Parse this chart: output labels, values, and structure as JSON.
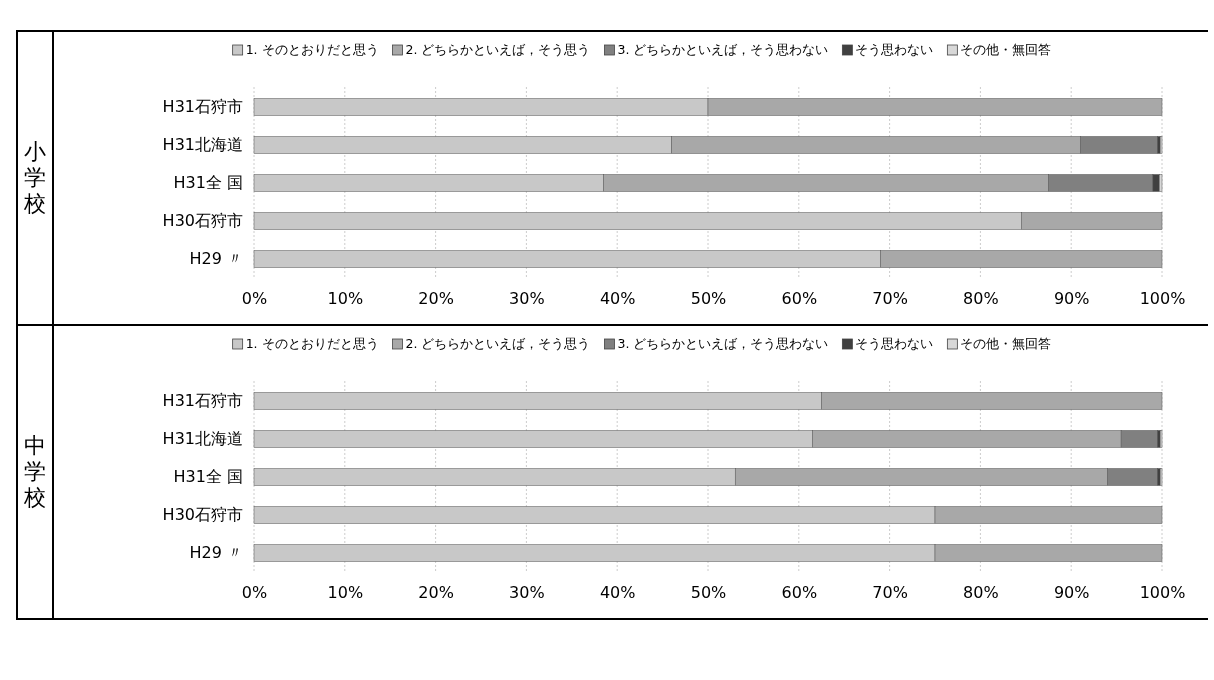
{
  "chart_data": [
    {
      "type": "bar",
      "orientation": "horizontal",
      "stacked": true,
      "ylabel": "小学校",
      "legend": "top",
      "grid": "x",
      "categories": [
        "H31石狩市",
        "H31北海道",
        "H31全 国",
        "H30石狩市",
        "H29 〃"
      ],
      "xlim": [
        0,
        100
      ],
      "xticks": [
        {
          "value": 0,
          "label": "0%"
        },
        {
          "value": 10,
          "label": "10%"
        },
        {
          "value": 20,
          "label": "20%"
        },
        {
          "value": 30,
          "label": "30%"
        },
        {
          "value": 40,
          "label": "40%"
        },
        {
          "value": 50,
          "label": "50%"
        },
        {
          "value": 60,
          "label": "60%"
        },
        {
          "value": 70,
          "label": "70%"
        },
        {
          "value": 80,
          "label": "80%"
        },
        {
          "value": 90,
          "label": "90%"
        },
        {
          "value": 100,
          "label": "100%"
        }
      ],
      "series": [
        {
          "name": "1. そのとおりだと思う",
          "color": "#c8c8c8",
          "values": [
            50,
            46,
            38.5,
            84.5,
            69
          ]
        },
        {
          "name": "2. どちらかといえば，そう思う",
          "color": "#a8a8a8",
          "values": [
            50,
            45,
            49,
            15.5,
            31
          ]
        },
        {
          "name": "3. どちらかといえば，そう思わない",
          "color": "#808080",
          "values": [
            0,
            8.5,
            11.5,
            0,
            0
          ]
        },
        {
          "name": "そう思わない",
          "color": "#404040",
          "values": [
            0,
            0.3,
            0.7,
            0,
            0
          ]
        },
        {
          "name": "その他・無回答",
          "color": "#d8d8d8",
          "values": [
            0,
            0.2,
            0.3,
            0,
            0
          ]
        }
      ]
    },
    {
      "type": "bar",
      "orientation": "horizontal",
      "stacked": true,
      "ylabel": "中学校",
      "legend": "top",
      "grid": "x",
      "categories": [
        "H31石狩市",
        "H31北海道",
        "H31全 国",
        "H30石狩市",
        "H29 〃"
      ],
      "xlim": [
        0,
        100
      ],
      "xticks": [
        {
          "value": 0,
          "label": "0%"
        },
        {
          "value": 10,
          "label": "10%"
        },
        {
          "value": 20,
          "label": "20%"
        },
        {
          "value": 30,
          "label": "30%"
        },
        {
          "value": 40,
          "label": "40%"
        },
        {
          "value": 50,
          "label": "50%"
        },
        {
          "value": 60,
          "label": "60%"
        },
        {
          "value": 70,
          "label": "70%"
        },
        {
          "value": 80,
          "label": "80%"
        },
        {
          "value": 90,
          "label": "90%"
        },
        {
          "value": 100,
          "label": "100%"
        }
      ],
      "series": [
        {
          "name": "1. そのとおりだと思う",
          "color": "#c8c8c8",
          "values": [
            62.5,
            61.5,
            53,
            75,
            75
          ]
        },
        {
          "name": "2. どちらかといえば，そう思う",
          "color": "#a8a8a8",
          "values": [
            37.5,
            34,
            41,
            25,
            25
          ]
        },
        {
          "name": "3. どちらかといえば，そう思わない",
          "color": "#808080",
          "values": [
            0,
            4,
            5.5,
            0,
            0
          ]
        },
        {
          "name": "そう思わない",
          "color": "#404040",
          "values": [
            0,
            0.3,
            0.3,
            0,
            0
          ]
        },
        {
          "name": "その他・無回答",
          "color": "#d8d8d8",
          "values": [
            0,
            0.2,
            0.2,
            0,
            0
          ]
        }
      ]
    }
  ]
}
